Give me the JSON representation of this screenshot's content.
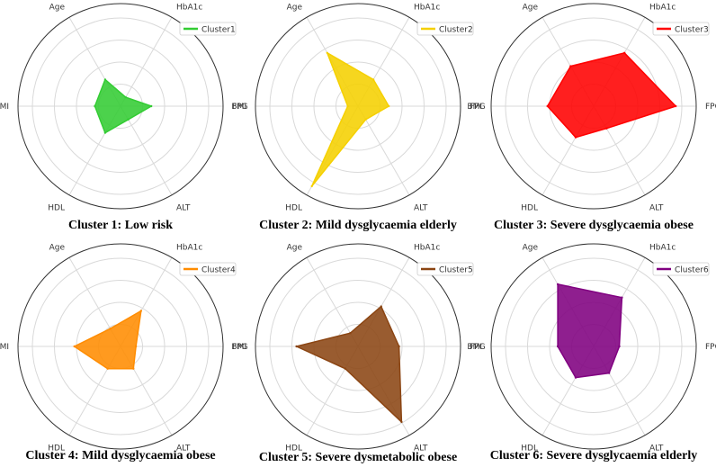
{
  "chart_data": [
    {
      "type": "radar",
      "axes": [
        "FPG",
        "HbA1c",
        "Age",
        "BMI",
        "HDL",
        "ALT"
      ],
      "rlim": [
        0,
        1
      ],
      "grid": true,
      "legend_position": "top-right",
      "series": [
        {
          "name": "Cluster1",
          "values": [
            0.3,
            0.1,
            0.3,
            0.25,
            0.3,
            0.15
          ],
          "color": "#33cc33"
        }
      ],
      "caption": "Cluster 1: Low risk"
    },
    {
      "type": "radar",
      "axes": [
        "FPG",
        "HbA1c",
        "Age",
        "BMI",
        "HDL",
        "ALT"
      ],
      "rlim": [
        0,
        1
      ],
      "grid": true,
      "legend_position": "top-right",
      "series": [
        {
          "name": "Cluster2",
          "values": [
            0.3,
            0.3,
            0.6,
            0.1,
            0.9,
            0.15
          ],
          "color": "#f5d000"
        }
      ],
      "caption": "Cluster 2: Mild dysglycaemia elderly"
    },
    {
      "type": "radar",
      "axes": [
        "FPG",
        "HbA1c",
        "Age",
        "BMI",
        "HDL",
        "ALT"
      ],
      "rlim": [
        0,
        1
      ],
      "grid": true,
      "legend_position": "top-right",
      "series": [
        {
          "name": "Cluster3",
          "values": [
            0.8,
            0.6,
            0.45,
            0.45,
            0.35,
            0.25
          ],
          "color": "#ff0000"
        }
      ],
      "caption": "Cluster 3: Severe dysglycaemia obese"
    },
    {
      "type": "radar",
      "axes": [
        "FPG",
        "HbA1c",
        "Age",
        "BMI",
        "HDL",
        "ALT"
      ],
      "rlim": [
        0,
        1
      ],
      "grid": true,
      "legend_position": "top-right",
      "series": [
        {
          "name": "Cluster4",
          "values": [
            0.15,
            0.4,
            0.2,
            0.45,
            0.25,
            0.25
          ],
          "color": "#ff8c00"
        }
      ],
      "caption": "Cluster 4: Mild dysglycaemia obese"
    },
    {
      "type": "radar",
      "axes": [
        "FPG",
        "HbA1c",
        "Age",
        "BMI",
        "HDL",
        "ALT"
      ],
      "rlim": [
        0,
        1
      ],
      "grid": true,
      "legend_position": "top-right",
      "series": [
        {
          "name": "Cluster5",
          "values": [
            0.4,
            0.45,
            0.15,
            0.6,
            0.25,
            0.85
          ],
          "color": "#8b4513"
        }
      ],
      "caption": "Cluster 5: Severe dysmetabolic obese"
    },
    {
      "type": "radar",
      "axes": [
        "FPG",
        "HbA1c",
        "Age",
        "BMI",
        "HDL",
        "ALT"
      ],
      "rlim": [
        0,
        1
      ],
      "grid": true,
      "legend_position": "top-right",
      "series": [
        {
          "name": "Cluster6",
          "values": [
            0.25,
            0.55,
            0.7,
            0.35,
            0.35,
            0.3
          ],
          "color": "#800080"
        }
      ],
      "caption": "Cluster 6: Severe dysglycaemia elderly"
    }
  ]
}
